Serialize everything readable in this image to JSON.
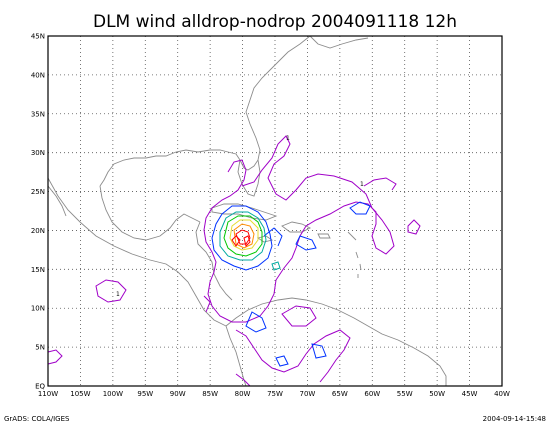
{
  "title": "DLM wind alldrop-nodrop 2004091118 12h",
  "footer_left": "GrADS: COLA/IGES",
  "footer_right": "2004-09-14-15:48",
  "lon_ticks": [
    "110W",
    "105W",
    "100W",
    "95W",
    "90W",
    "85W",
    "80W",
    "75W",
    "70W",
    "65W",
    "60W",
    "55W",
    "50W",
    "45W",
    "40W"
  ],
  "lat_ticks": [
    "EQ",
    "5N",
    "10N",
    "15N",
    "20N",
    "25N",
    "30N",
    "35N",
    "40N",
    "45N"
  ],
  "contour_label": "1",
  "colors": {
    "coast": "#8c8c8c",
    "contour_1": "#a000c8",
    "contour_2": "#0032ff",
    "contour_3": "#00aaa0",
    "contour_4": "#00c800",
    "contour_5": "#e6dc32",
    "contour_6": "#ff8c00",
    "contour_7": "#ff0000"
  }
}
